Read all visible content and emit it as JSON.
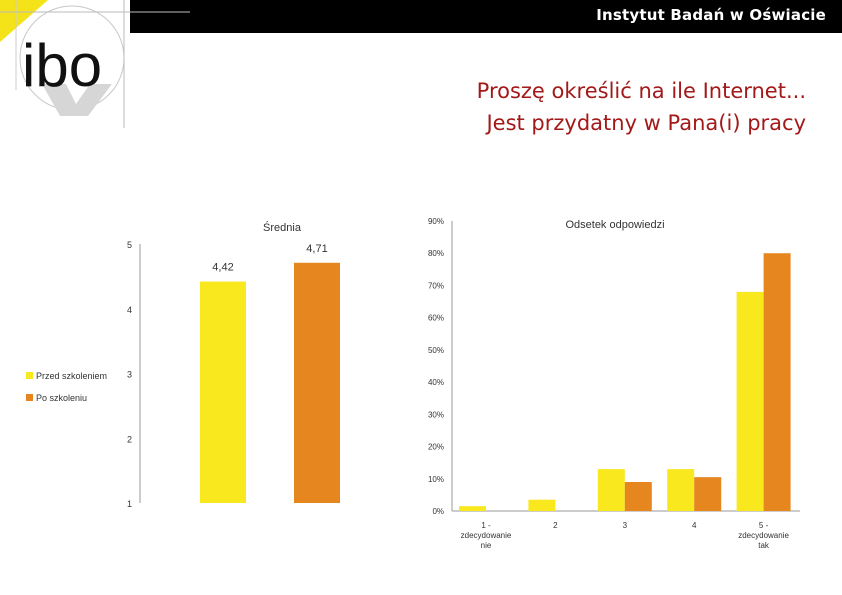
{
  "header": {
    "organization": "Instytut Badań w Oświacie",
    "logo_text": "ibo"
  },
  "slide": {
    "title_line1": "Proszę określić na ile Internet...",
    "title_line2": "Jest przydatny w Pana(i) pracy"
  },
  "colors": {
    "series1": "#f9e81d",
    "series2": "#e5861f",
    "title": "#a31919"
  },
  "chart_data": [
    {
      "type": "bar",
      "title": "Średnia",
      "categories": [
        ""
      ],
      "ylim": [
        1,
        5
      ],
      "yticks": [
        "1",
        "2",
        "3",
        "4",
        "5"
      ],
      "series": [
        {
          "name": "Przed szkoleniem",
          "values": [
            4.42
          ],
          "label": "4,42"
        },
        {
          "name": "Po szkoleniu",
          "values": [
            4.71
          ],
          "label": "4,71"
        }
      ],
      "legend": {
        "position": "left",
        "entries": [
          "Przed szkoleniem",
          "Po szkoleniu"
        ]
      },
      "grid": false
    },
    {
      "type": "bar",
      "title": "Odsetek odpowiedzi",
      "categories": [
        [
          "1 -",
          "zdecydowanie",
          "nie"
        ],
        [
          "2"
        ],
        [
          "3"
        ],
        [
          "4"
        ],
        [
          "5 -",
          "zdecydowanie",
          "tak"
        ]
      ],
      "ylim": [
        0,
        90
      ],
      "yticks": [
        "0%",
        "10%",
        "20%",
        "30%",
        "40%",
        "50%",
        "60%",
        "70%",
        "80%",
        "90%"
      ],
      "series": [
        {
          "name": "Przed szkoleniem",
          "values": [
            1.5,
            3.5,
            13,
            13,
            68
          ]
        },
        {
          "name": "Po szkoleniu",
          "values": [
            0,
            0,
            9,
            10.5,
            80
          ]
        }
      ],
      "grid": false
    }
  ]
}
